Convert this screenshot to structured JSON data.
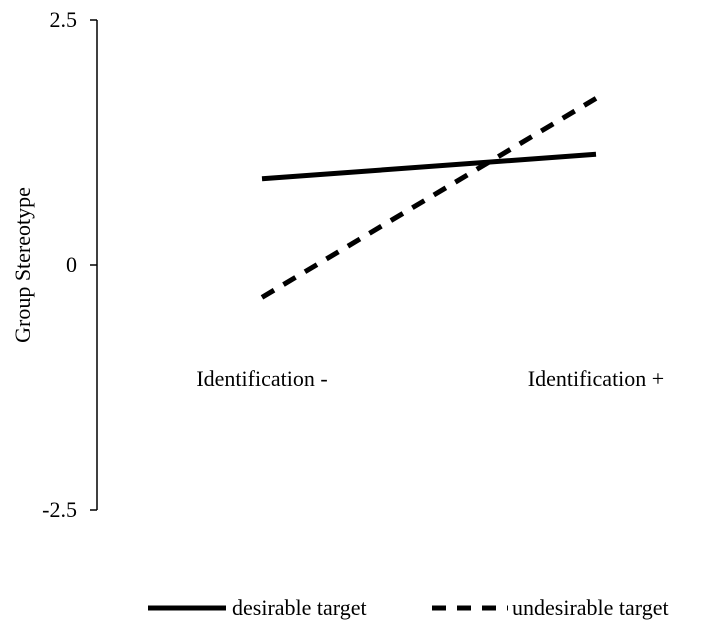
{
  "chart_data": {
    "type": "line",
    "title": "",
    "xlabel": "",
    "ylabel": "Group Stereotype",
    "categories": [
      "Identification -",
      "Identification +"
    ],
    "ylim": [
      -2.5,
      2.5
    ],
    "yticks": [
      2.5,
      0,
      -2.5
    ],
    "ytick_labels": [
      "2.5",
      "0",
      "-2.5"
    ],
    "series": [
      {
        "name": "desirable target",
        "values": [
          0.88,
          1.13
        ],
        "style": "solid",
        "color": "#000000"
      },
      {
        "name": "undesirable target",
        "values": [
          -0.33,
          1.7
        ],
        "style": "dashed",
        "color": "#000000"
      }
    ],
    "grid": false,
    "legend_position": "bottom"
  }
}
